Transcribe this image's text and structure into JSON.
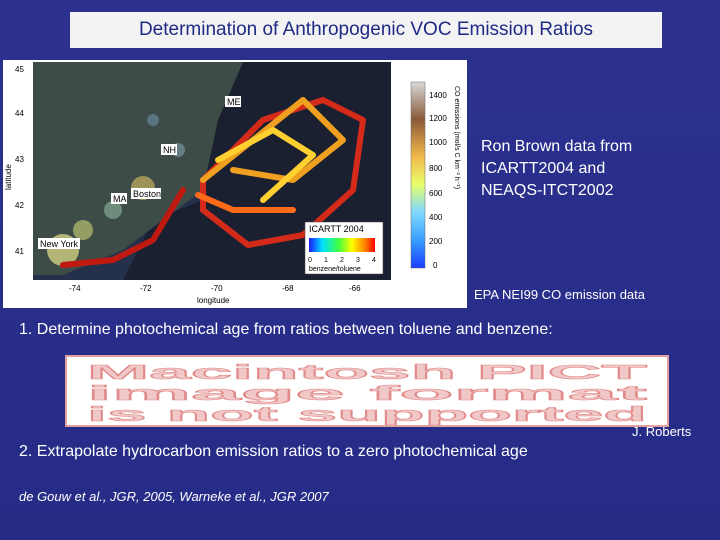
{
  "title": "Determination of Anthropogenic VOC Emission Ratios",
  "map": {
    "y_ticks": [
      "45",
      "44",
      "43",
      "42",
      "41"
    ],
    "x_ticks": [
      "-74",
      "-72",
      "-70",
      "-68",
      "-66"
    ],
    "y_axis_label": "latitude",
    "x_axis_label": "longitude",
    "colorbar_ticks": [
      "1400",
      "1200",
      "1000",
      "800",
      "600",
      "400",
      "200",
      "0"
    ],
    "colorbar_label": "CO emissions (mol/s C km⁻² h⁻¹)",
    "place_labels": [
      "ME",
      "NH",
      "Boston",
      "MA",
      "New York"
    ],
    "inset_title": "ICARTT 2004",
    "inset_ticks": [
      "0",
      "1",
      "2",
      "3",
      "4"
    ],
    "inset_label": "benzene/toluene"
  },
  "side_text": {
    "line1": "Ron Brown data from",
    "line2": "ICARTT2004 and",
    "line3": "NEAQS-ITCT2002"
  },
  "epa_note": "EPA NEI99 CO emission data",
  "step1": "1. Determine photochemical age from ratios between toluene and benzene:",
  "pict_placeholder": {
    "line1": "Macintosh PICT",
    "line2": "image format",
    "line3": "is not supported"
  },
  "attribution": "J. Roberts",
  "step2": "2. Extrapolate hydrocarbon emission ratios to a zero photochemical age",
  "references": "de Gouw et al., JGR, 2005, Warneke et al., JGR 2007"
}
